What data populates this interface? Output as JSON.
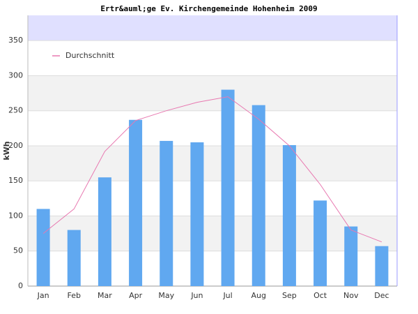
{
  "chart_data": {
    "type": "bar",
    "title": "Ertr&auml;ge Ev. Kirchengemeinde Hohenheim 2009",
    "y_label": "kWh",
    "categories": [
      "Jan",
      "Feb",
      "Mar",
      "Apr",
      "May",
      "Jun",
      "Jul",
      "Aug",
      "Sep",
      "Oct",
      "Nov",
      "Dec"
    ],
    "series": [
      {
        "type": "bar",
        "color": "#60a8f0",
        "values": [
          110,
          80,
          155,
          237,
          207,
          205,
          280,
          258,
          201,
          122,
          85,
          57
        ]
      },
      {
        "type": "line",
        "name": "Durchschnitt",
        "color": "#e878b0",
        "values": [
          75,
          110,
          192,
          236,
          250,
          262,
          270,
          238,
          200,
          145,
          80,
          63
        ]
      }
    ],
    "ylim": [
      0,
      386
    ],
    "yticks": [
      0,
      50,
      100,
      150,
      200,
      250,
      300,
      350
    ],
    "grid": true
  }
}
